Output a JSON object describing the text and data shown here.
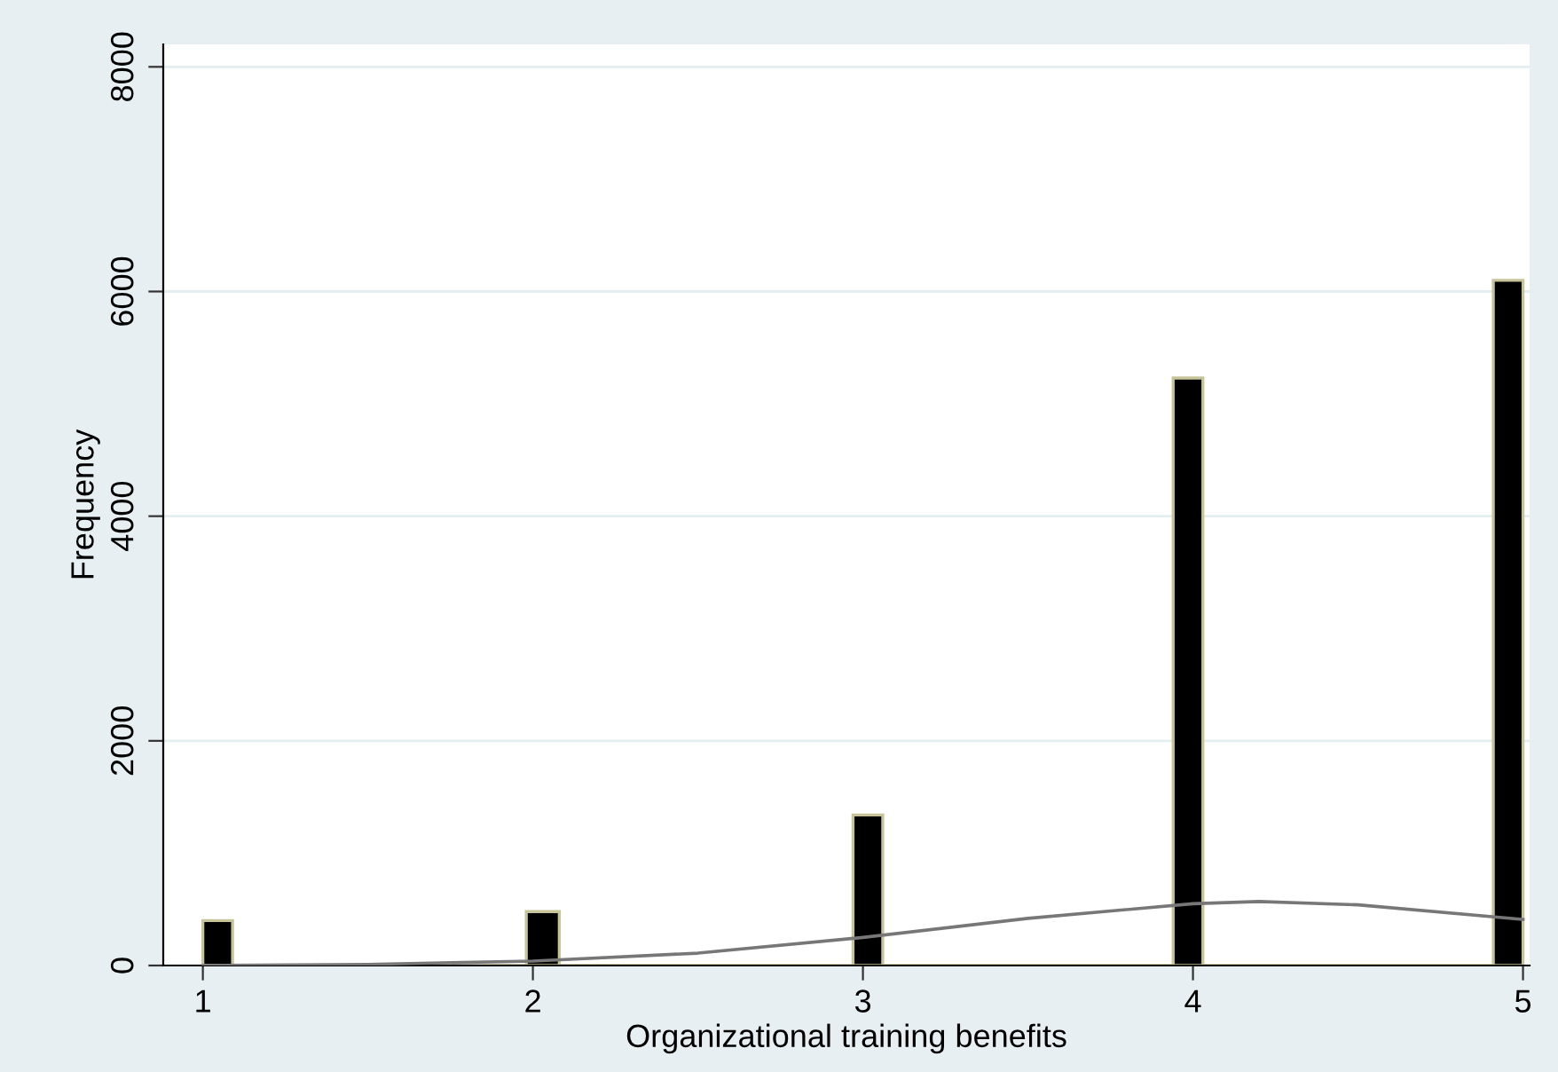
{
  "chart_data": {
    "type": "histogram",
    "xlabel": "Organizational training benefits",
    "ylabel": "Frequency",
    "bins": [
      1.0,
      1.09,
      1.98,
      2.08,
      2.97,
      3.06,
      3.94,
      4.03,
      4.91,
      5.0
    ],
    "values": [
      400,
      0,
      480,
      0,
      1340,
      0,
      5230,
      0,
      6100
    ],
    "color": "#000000",
    "series": [
      {
        "type": "line",
        "color": "#777777",
        "x": [
          1,
          1.5,
          2,
          2.5,
          3,
          3.5,
          4,
          4.2,
          4.5,
          5
        ],
        "values": [
          0,
          10,
          40,
          110,
          250,
          420,
          550,
          570,
          540,
          410
        ]
      }
    ],
    "xlim": [
      0.88,
      5.02
    ],
    "ylim": [
      0,
      8200
    ],
    "xticks": [
      1,
      2,
      3,
      4,
      5
    ],
    "yticks": [
      0,
      2000,
      4000,
      6000,
      8000
    ],
    "grid": "y"
  }
}
